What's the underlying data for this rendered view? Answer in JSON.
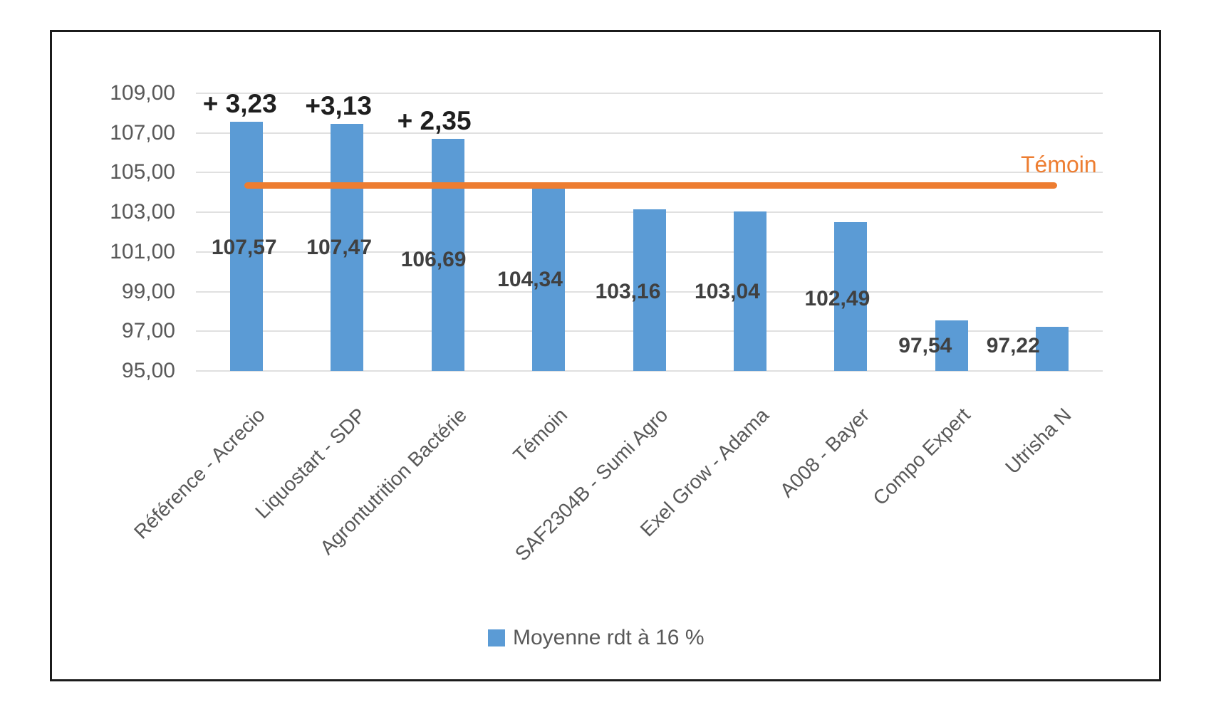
{
  "chart_data": {
    "type": "bar",
    "title": "",
    "categories": [
      "Référence - Acrecio",
      "Liquostart - SDP",
      "Agrontutrition Bactérie",
      "Témoin",
      "SAF2304B - Sumi Agro",
      "Exel Grow - Adama",
      "A008 - Bayer",
      "Compo Expert",
      "Utrisha N"
    ],
    "series": [
      {
        "name": "Moyenne rdt à 16 %",
        "values": [
          107.57,
          107.47,
          106.69,
          104.34,
          103.16,
          103.04,
          102.49,
          97.54,
          97.22
        ]
      }
    ],
    "data_labels": [
      "107,57",
      "107,47",
      "106,69",
      "104,34",
      "103,16",
      "103,04",
      "102,49",
      "97,54",
      "97,22"
    ],
    "annotations": [
      {
        "category_index": 0,
        "text": "+ 3,23"
      },
      {
        "category_index": 1,
        "text": "+3,13"
      },
      {
        "category_index": 2,
        "text": "+ 2,35"
      }
    ],
    "reference_line": {
      "label": "Témoin",
      "value": 104.34
    },
    "y_ticks": [
      "109,00",
      "107,00",
      "105,00",
      "103,00",
      "101,00",
      "99,00",
      "97,00",
      "95,00"
    ],
    "ylim": [
      95,
      109
    ],
    "y_step": 2,
    "grid": true,
    "legend": {
      "label": "Moyenne rdt à 16 %",
      "position": "bottom"
    },
    "colors": {
      "bar": "#5B9BD5",
      "reference_line": "#ED7D31",
      "reference_label": "#ED7D31",
      "grid": "#E0E0E0",
      "axis_text": "#595959",
      "data_label": "#404040",
      "annotation": "#1F1F1F",
      "frame_border": "#1B1B1B",
      "background": "#FFFFFF"
    }
  }
}
